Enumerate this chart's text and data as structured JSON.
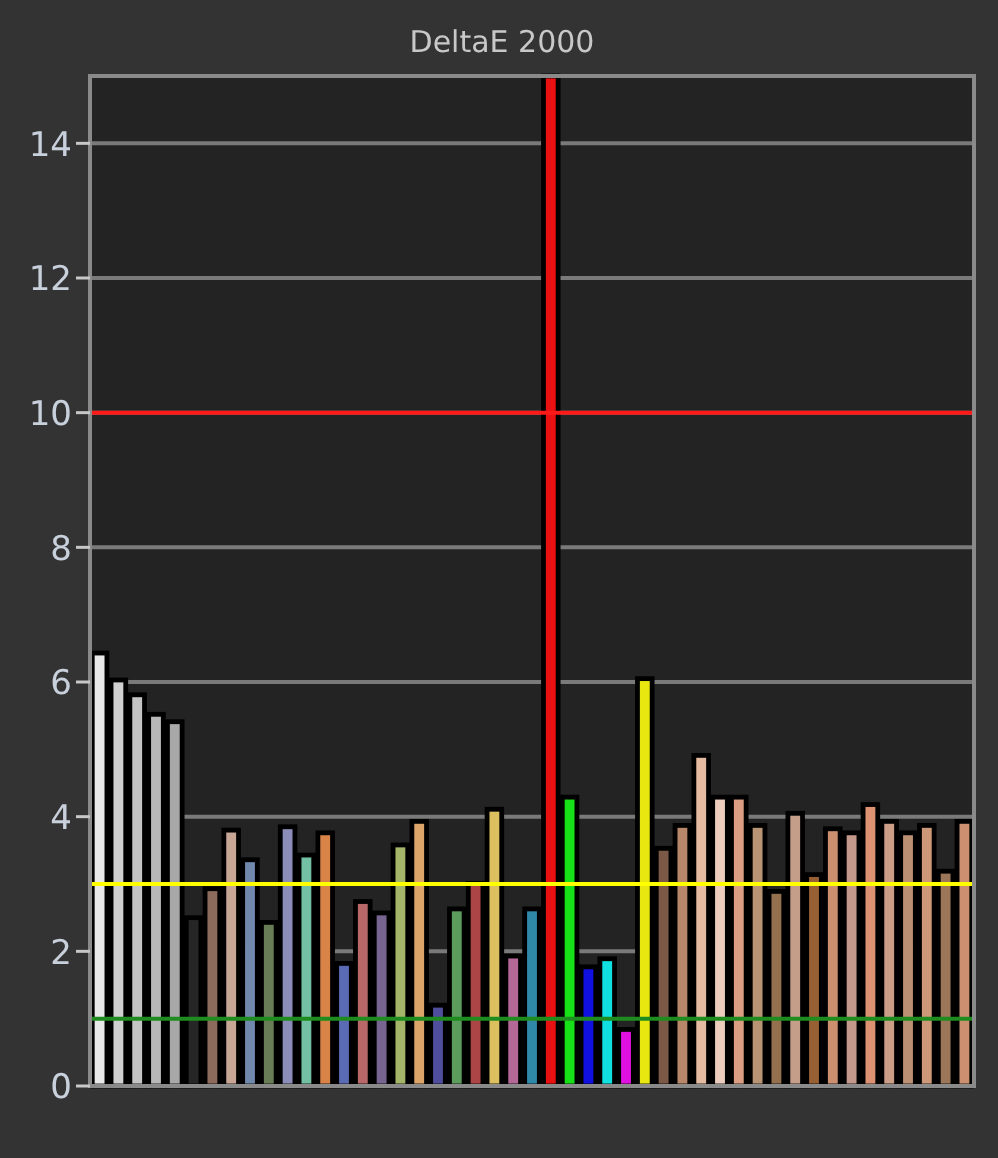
{
  "chart_data": {
    "type": "bar",
    "title": "DeltaE 2000",
    "categories": [
      null,
      null,
      null,
      null,
      null,
      null,
      null,
      null,
      null,
      null,
      null,
      null,
      null,
      null,
      null,
      null,
      null,
      null,
      null,
      null,
      null,
      null,
      null,
      null,
      null,
      null,
      null,
      null,
      null,
      null,
      null,
      null,
      null,
      null,
      null,
      null,
      null,
      null,
      null,
      null,
      null,
      null,
      null,
      null,
      null,
      null,
      null
    ],
    "values": [
      6.43,
      6.03,
      5.81,
      5.52,
      5.41,
      2.5,
      2.93,
      3.8,
      3.36,
      2.43,
      3.85,
      3.43,
      3.76,
      1.82,
      2.74,
      2.57,
      3.58,
      3.93,
      1.2,
      2.63,
      3.01,
      4.11,
      1.93,
      2.63,
      15,
      4.29,
      1.77,
      1.89,
      0.84,
      6.05,
      3.53,
      3.87,
      4.91,
      4.29,
      4.29,
      3.87,
      2.89,
      4.05,
      3.14,
      3.82,
      3.76,
      4.18,
      3.93,
      3.76,
      3.87,
      3.19,
      3.93
    ],
    "colors": [
      "#e8e8e8",
      "#d0d0d0",
      "#c4c4c4",
      "#b8b8b8",
      "#a8a8a8",
      "#262626",
      "#8c6a5c",
      "#c8a696",
      "#7088ac",
      "#687c56",
      "#8c8cb8",
      "#74c0a4",
      "#d88448",
      "#5a6ab4",
      "#b86868",
      "#786490",
      "#a4b468",
      "#dca468",
      "#4e4e9c",
      "#5c9c5c",
      "#ac4646",
      "#dcc060",
      "#b46898",
      "#3088a8",
      "#e81010",
      "#18e018",
      "#1010e0",
      "#10e0e0",
      "#e010e0",
      "#e8e810",
      "#7c5846",
      "#b88668",
      "#e4baa0",
      "#ecccbc",
      "#dc9e82",
      "#b89474",
      "#94704e",
      "#c49e88",
      "#965f34",
      "#cc9070",
      "#c4988a",
      "#dc9272",
      "#cc9e88",
      "#bc9072",
      "#cc9878",
      "#9c7658",
      "#cc9070"
    ],
    "ylim": [
      0,
      15
    ],
    "yticks": [
      0,
      2,
      4,
      6,
      8,
      10,
      12,
      14
    ],
    "grid": true,
    "ref_lines": [
      {
        "axis": "y",
        "value": 10,
        "color": "#ff1a1a"
      },
      {
        "axis": "y",
        "value": 3,
        "color": "#ffff00"
      },
      {
        "axis": "y",
        "value": 1,
        "color": "#1e8c1e"
      }
    ]
  }
}
